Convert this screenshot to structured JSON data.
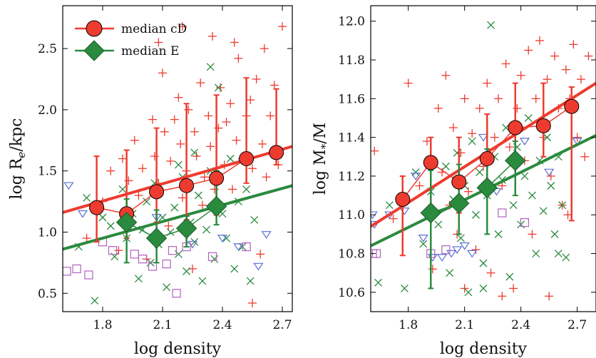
{
  "colors": {
    "cd": "#ee3b2f",
    "e": "#2a8a3e",
    "e_dark": "#1a5e2a",
    "tri": "#5a6fd6",
    "sq": "#b060c0",
    "frame": "#000000"
  },
  "chart_data": [
    {
      "type": "scatter",
      "xlabel": "log density",
      "ylabel": "log R_e/kpc",
      "xlim": [
        1.6,
        2.75
      ],
      "ylim": [
        0.35,
        2.85
      ],
      "xticks": [
        "1.8",
        "2.1",
        "2.4",
        "2.7"
      ],
      "yticks": [
        "0.5",
        "1.0",
        "1.5",
        "2.0",
        "2.5"
      ],
      "legend": {
        "position": "top-left",
        "entries": [
          "median cD",
          "median E"
        ]
      },
      "series": [
        {
          "name": "median cD",
          "marker": "circle",
          "x": [
            1.77,
            1.92,
            2.07,
            2.22,
            2.37,
            2.52,
            2.67
          ],
          "y": [
            1.2,
            1.15,
            1.33,
            1.38,
            1.44,
            1.6,
            1.65
          ],
          "err_lo": [
            0.28,
            0.2,
            0.25,
            0.28,
            0.3,
            0.2,
            0.1
          ],
          "err_hi": [
            0.42,
            0.52,
            0.52,
            0.67,
            0.68,
            0.66,
            0.52
          ]
        },
        {
          "name": "median E",
          "marker": "diamond",
          "x": [
            1.92,
            2.07,
            2.22,
            2.37
          ],
          "y": [
            1.08,
            0.95,
            1.03,
            1.21
          ],
          "err_lo": [
            0.33,
            0.2,
            0.15,
            0.15
          ],
          "err_hi": [
            0.19,
            0.23,
            0.1,
            0.29
          ]
        }
      ],
      "fits": [
        {
          "series": "median cD",
          "x": [
            1.6,
            2.75
          ],
          "y": [
            1.16,
            1.7
          ]
        },
        {
          "series": "median E",
          "x": [
            1.6,
            2.75
          ],
          "y": [
            0.86,
            1.38
          ]
        }
      ],
      "scatter": {
        "cd_plus": [
          [
            1.72,
            0.95
          ],
          [
            1.8,
            1.25
          ],
          [
            1.84,
            1.5
          ],
          [
            1.88,
            0.85
          ],
          [
            1.9,
            1.6
          ],
          [
            1.93,
            1.42
          ],
          [
            1.96,
            1.75
          ],
          [
            1.98,
            1.3
          ],
          [
            2.0,
            1.52
          ],
          [
            2.02,
            0.78
          ],
          [
            2.05,
            1.92
          ],
          [
            2.06,
            1.62
          ],
          [
            2.08,
            1.4
          ],
          [
            2.1,
            2.3
          ],
          [
            2.11,
            1.82
          ],
          [
            2.13,
            1.05
          ],
          [
            2.14,
            1.58
          ],
          [
            2.16,
            1.92
          ],
          [
            2.18,
            2.1
          ],
          [
            2.19,
            1.72
          ],
          [
            2.2,
            1.28
          ],
          [
            2.22,
            1.5
          ],
          [
            2.23,
            2.0
          ],
          [
            2.25,
            0.7
          ],
          [
            2.26,
            1.82
          ],
          [
            2.27,
            1.62
          ],
          [
            2.29,
            2.22
          ],
          [
            2.3,
            1.22
          ],
          [
            2.31,
            1.45
          ],
          [
            2.33,
            1.95
          ],
          [
            2.34,
            1.7
          ],
          [
            2.35,
            2.6
          ],
          [
            2.36,
            1.35
          ],
          [
            2.38,
            1.85
          ],
          [
            2.39,
            2.18
          ],
          [
            2.41,
            1.55
          ],
          [
            2.42,
            1.9
          ],
          [
            2.44,
            2.05
          ],
          [
            2.45,
            1.35
          ],
          [
            2.47,
            1.75
          ],
          [
            2.48,
            2.42
          ],
          [
            2.5,
            1.6
          ],
          [
            2.52,
            1.95
          ],
          [
            2.54,
            2.08
          ],
          [
            2.55,
            1.52
          ],
          [
            2.57,
            2.25
          ],
          [
            2.59,
            0.82
          ],
          [
            2.6,
            1.72
          ],
          [
            2.61,
            2.5
          ],
          [
            2.62,
            1.45
          ],
          [
            2.64,
            1.95
          ],
          [
            2.66,
            2.2
          ],
          [
            2.68,
            1.55
          ],
          [
            2.7,
            2.68
          ],
          [
            2.55,
            0.42
          ],
          [
            2.08,
            2.55
          ],
          [
            2.2,
            2.68
          ],
          [
            2.46,
            2.55
          ]
        ],
        "e_x": [
          [
            1.68,
            0.88
          ],
          [
            1.72,
            1.28
          ],
          [
            1.76,
            0.44
          ],
          [
            1.8,
            1.12
          ],
          [
            1.84,
            1.05
          ],
          [
            1.86,
            0.8
          ],
          [
            1.9,
            1.35
          ],
          [
            1.92,
            0.95
          ],
          [
            1.95,
            1.15
          ],
          [
            1.98,
            0.62
          ],
          [
            2.0,
            1.02
          ],
          [
            2.02,
            1.25
          ],
          [
            2.04,
            0.75
          ],
          [
            2.06,
            1.4
          ],
          [
            2.08,
            0.9
          ],
          [
            2.1,
            1.12
          ],
          [
            2.12,
            0.55
          ],
          [
            2.14,
            1.0
          ],
          [
            2.16,
            1.2
          ],
          [
            2.18,
            0.82
          ],
          [
            2.2,
            1.45
          ],
          [
            2.22,
            0.68
          ],
          [
            2.24,
            1.08
          ],
          [
            2.26,
            0.92
          ],
          [
            2.28,
            1.3
          ],
          [
            2.3,
            0.6
          ],
          [
            2.32,
            1.02
          ],
          [
            2.34,
            1.5
          ],
          [
            2.36,
            0.78
          ],
          [
            2.38,
            2.18
          ],
          [
            2.4,
            1.15
          ],
          [
            2.42,
            0.95
          ],
          [
            2.44,
            1.6
          ],
          [
            2.46,
            0.7
          ],
          [
            2.48,
            1.25
          ],
          [
            2.5,
            0.88
          ],
          [
            2.52,
            1.35
          ],
          [
            2.54,
            0.6
          ],
          [
            2.56,
            1.1
          ],
          [
            2.34,
            2.35
          ],
          [
            2.26,
            1.65
          ],
          [
            2.18,
            1.55
          ]
        ],
        "triangles": [
          [
            1.63,
            1.38
          ],
          [
            1.7,
            1.15
          ],
          [
            2.07,
            1.12
          ],
          [
            2.4,
            0.95
          ],
          [
            2.48,
            0.88
          ],
          [
            2.58,
            0.72
          ],
          [
            2.62,
            0.98
          ],
          [
            2.25,
            0.9
          ]
        ],
        "squares": [
          [
            1.62,
            0.68
          ],
          [
            1.67,
            0.7
          ],
          [
            1.73,
            0.65
          ],
          [
            1.8,
            0.92
          ],
          [
            1.85,
            0.85
          ],
          [
            1.96,
            0.82
          ],
          [
            2.0,
            0.78
          ],
          [
            2.05,
            0.72
          ],
          [
            2.12,
            0.74
          ],
          [
            2.15,
            0.85
          ],
          [
            2.17,
            0.5
          ],
          [
            2.22,
            0.88
          ],
          [
            2.35,
            0.8
          ],
          [
            2.52,
            0.88
          ]
        ]
      }
    },
    {
      "type": "scatter",
      "xlabel": "log density",
      "ylabel": "log M_*/M_⊙",
      "xlim": [
        1.6,
        2.8
      ],
      "ylim": [
        10.5,
        12.08
      ],
      "xticks": [
        "1.8",
        "2.1",
        "2.4",
        "2.7"
      ],
      "yticks": [
        "10.6",
        "10.8",
        "11.0",
        "11.2",
        "11.4",
        "11.6",
        "11.8",
        "12.0"
      ],
      "series": [
        {
          "name": "median cD",
          "marker": "circle",
          "x": [
            1.77,
            1.92,
            2.07,
            2.22,
            2.37,
            2.52,
            2.67
          ],
          "y": [
            11.08,
            11.27,
            11.17,
            11.29,
            11.45,
            11.46,
            11.56
          ],
          "err_lo": [
            0.29,
            0.27,
            0.16,
            0.12,
            0.15,
            0.16,
            0.59
          ],
          "err_hi": [
            0.12,
            0.13,
            0.23,
            0.23,
            0.23,
            0.22,
            0.1
          ]
        },
        {
          "name": "median E",
          "marker": "diamond",
          "x": [
            1.92,
            2.07,
            2.22,
            2.37
          ],
          "y": [
            11.01,
            11.06,
            11.14,
            11.28
          ],
          "err_lo": [
            0.39,
            0.16,
            0.24,
            0.18
          ],
          "err_hi": [
            0.22,
            0.2,
            0.2,
            0.1
          ]
        }
      ],
      "fits": [
        {
          "series": "median cD",
          "x": [
            1.6,
            2.8
          ],
          "y": [
            10.94,
            11.68
          ]
        },
        {
          "series": "median E",
          "x": [
            1.6,
            2.8
          ],
          "y": [
            10.84,
            11.41
          ]
        }
      ],
      "scatter": {
        "cd_plus": [
          [
            1.62,
            11.33
          ],
          [
            1.72,
            10.98
          ],
          [
            1.8,
            11.68
          ],
          [
            1.86,
            11.15
          ],
          [
            1.9,
            11.38
          ],
          [
            1.93,
            10.72
          ],
          [
            1.96,
            11.55
          ],
          [
            1.98,
            11.22
          ],
          [
            2.0,
            11.72
          ],
          [
            2.02,
            11.05
          ],
          [
            2.04,
            11.45
          ],
          [
            2.06,
            10.9
          ],
          [
            2.08,
            11.32
          ],
          [
            2.1,
            11.6
          ],
          [
            2.12,
            11.12
          ],
          [
            2.14,
            11.42
          ],
          [
            2.16,
            10.82
          ],
          [
            2.18,
            11.55
          ],
          [
            2.2,
            11.25
          ],
          [
            2.22,
            11.68
          ],
          [
            2.24,
            10.7
          ],
          [
            2.26,
            11.4
          ],
          [
            2.28,
            11.6
          ],
          [
            2.3,
            11.15
          ],
          [
            2.32,
            11.78
          ],
          [
            2.34,
            11.35
          ],
          [
            2.36,
            10.62
          ],
          [
            2.38,
            11.55
          ],
          [
            2.4,
            11.72
          ],
          [
            2.42,
            11.28
          ],
          [
            2.44,
            11.85
          ],
          [
            2.46,
            10.9
          ],
          [
            2.48,
            11.6
          ],
          [
            2.5,
            11.9
          ],
          [
            2.52,
            11.4
          ],
          [
            2.54,
            11.7
          ],
          [
            2.56,
            11.2
          ],
          [
            2.58,
            11.82
          ],
          [
            2.6,
            11.55
          ],
          [
            2.62,
            11.05
          ],
          [
            2.64,
            11.75
          ],
          [
            2.66,
            11.6
          ],
          [
            2.68,
            11.88
          ],
          [
            2.7,
            11.4
          ],
          [
            2.72,
            11.7
          ],
          [
            2.74,
            11.3
          ],
          [
            2.76,
            11.82
          ],
          [
            2.55,
            10.58
          ],
          [
            2.65,
            11.0
          ],
          [
            2.3,
            10.58
          ],
          [
            2.1,
            10.62
          ]
        ],
        "e_x": [
          [
            1.64,
            10.65
          ],
          [
            1.7,
            11.05
          ],
          [
            1.78,
            10.62
          ],
          [
            1.84,
            11.22
          ],
          [
            1.88,
            10.85
          ],
          [
            1.92,
            11.12
          ],
          [
            1.96,
            10.95
          ],
          [
            2.0,
            11.25
          ],
          [
            2.02,
            10.7
          ],
          [
            2.04,
            11.08
          ],
          [
            2.06,
            11.32
          ],
          [
            2.08,
            10.88
          ],
          [
            2.1,
            11.15
          ],
          [
            2.12,
            10.6
          ],
          [
            2.14,
            11.38
          ],
          [
            2.16,
            11.0
          ],
          [
            2.18,
            11.22
          ],
          [
            2.2,
            10.75
          ],
          [
            2.22,
            11.1
          ],
          [
            2.24,
            11.98
          ],
          [
            2.26,
            11.3
          ],
          [
            2.28,
            10.9
          ],
          [
            2.3,
            11.18
          ],
          [
            2.32,
            11.45
          ],
          [
            2.34,
            10.68
          ],
          [
            2.36,
            11.05
          ],
          [
            2.38,
            11.35
          ],
          [
            2.4,
            10.95
          ],
          [
            2.42,
            11.2
          ],
          [
            2.44,
            11.5
          ],
          [
            2.46,
            11.1
          ],
          [
            2.48,
            10.8
          ],
          [
            2.5,
            11.28
          ],
          [
            2.52,
            11.02
          ],
          [
            2.54,
            11.4
          ],
          [
            2.56,
            11.15
          ],
          [
            2.58,
            10.9
          ],
          [
            2.6,
            11.3
          ],
          [
            2.62,
            11.05
          ],
          [
            2.64,
            10.78
          ],
          [
            2.6,
            10.8
          ],
          [
            2.2,
            10.62
          ]
        ],
        "triangles": [
          [
            1.61,
            11.0
          ],
          [
            1.62,
            10.95
          ],
          [
            1.7,
            11.0
          ],
          [
            1.78,
            11.02
          ],
          [
            1.84,
            11.2
          ],
          [
            1.88,
            10.88
          ],
          [
            1.93,
            10.78
          ],
          [
            1.98,
            10.78
          ],
          [
            2.03,
            10.8
          ],
          [
            2.06,
            10.82
          ],
          [
            2.1,
            10.84
          ],
          [
            2.14,
            10.8
          ],
          [
            2.2,
            11.4
          ],
          [
            2.27,
            11.12
          ],
          [
            2.42,
            11.38
          ],
          [
            2.55,
            11.22
          ],
          [
            2.7,
            11.38
          ]
        ],
        "squares": [
          [
            1.61,
            10.8
          ],
          [
            1.63,
            10.8
          ],
          [
            1.92,
            10.8
          ],
          [
            2.0,
            10.82
          ],
          [
            2.3,
            11.01
          ],
          [
            2.42,
            10.96
          ]
        ]
      }
    }
  ]
}
